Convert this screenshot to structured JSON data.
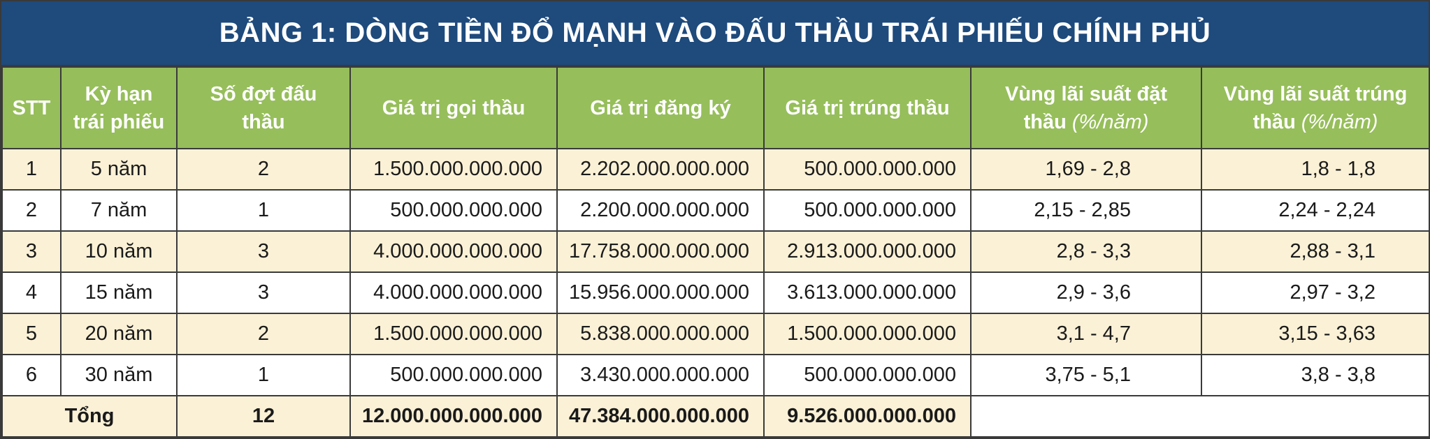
{
  "title": "BẢNG 1: DÒNG TIỀN ĐỔ MẠNH VÀO ĐẤU THẦU TRÁI PHIẾU CHÍNH PHỦ",
  "headers": {
    "stt": "STT",
    "ky_han_1": "Kỳ hạn",
    "ky_han_2": "trái phiếu",
    "so_dot_1": "Số đợt đấu",
    "so_dot_2": "thầu",
    "goi_thau": "Giá trị gọi thầu",
    "dang_ky": "Giá trị đăng ký",
    "trung_thau": "Giá trị  trúng thầu",
    "ls_dat_1": "Vùng lãi suất đặt",
    "ls_dat_2": "thầu",
    "ls_trung_1": "Vùng lãi suất trúng",
    "ls_trung_2": "thầu",
    "unit": "(%/năm)"
  },
  "rows": [
    {
      "stt": "1",
      "ky_han": "5 năm",
      "so_dot": "2",
      "goi_thau": "1.500.000.000.000",
      "dang_ky": "2.202.000.000.000",
      "trung_thau": "500.000.000.000",
      "ls_dat": "1,69 - 2,8",
      "ls_trung": "1,8 - 1,8"
    },
    {
      "stt": "2",
      "ky_han": "7 năm",
      "so_dot": "1",
      "goi_thau": "500.000.000.000",
      "dang_ky": "2.200.000.000.000",
      "trung_thau": "500.000.000.000",
      "ls_dat": "2,15 - 2,85",
      "ls_trung": "2,24 - 2,24"
    },
    {
      "stt": "3",
      "ky_han": "10 năm",
      "so_dot": "3",
      "goi_thau": "4.000.000.000.000",
      "dang_ky": "17.758.000.000.000",
      "trung_thau": "2.913.000.000.000",
      "ls_dat": "2,8 - 3,3",
      "ls_trung": "2,88 - 3,1"
    },
    {
      "stt": "4",
      "ky_han": "15 năm",
      "so_dot": "3",
      "goi_thau": "4.000.000.000.000",
      "dang_ky": "15.956.000.000.000",
      "trung_thau": "3.613.000.000.000",
      "ls_dat": "2,9 - 3,6",
      "ls_trung": "2,97 - 3,2"
    },
    {
      "stt": "5",
      "ky_han": "20 năm",
      "so_dot": "2",
      "goi_thau": "1.500.000.000.000",
      "dang_ky": "5.838.000.000.000",
      "trung_thau": "1.500.000.000.000",
      "ls_dat": "3,1 - 4,7",
      "ls_trung": "3,15 - 3,63"
    },
    {
      "stt": "6",
      "ky_han": "30 năm",
      "so_dot": "1",
      "goi_thau": "500.000.000.000",
      "dang_ky": "3.430.000.000.000",
      "trung_thau": "500.000.000.000",
      "ls_dat": "3,75 - 5,1",
      "ls_trung": "3,8 - 3,8"
    }
  ],
  "total": {
    "label": "Tổng",
    "so_dot": "12",
    "goi_thau": "12.000.000.000.000",
    "dang_ky": "47.384.000.000.000",
    "trung_thau": "9.526.000.000.000"
  }
}
